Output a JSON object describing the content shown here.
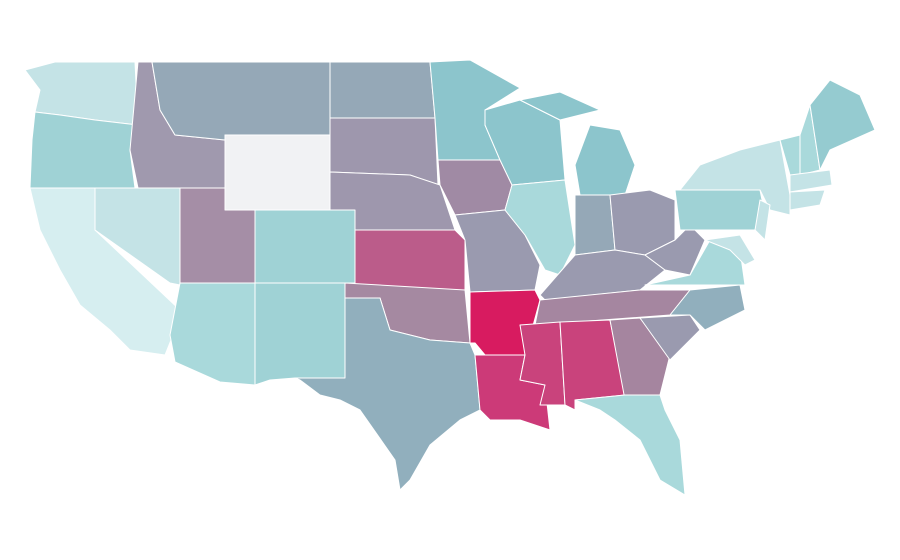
{
  "map": {
    "regions": [
      {
        "color": "#c4e3e6"
      },
      {
        "color": "#9fd2d5"
      },
      {
        "color": "#d6eef0"
      },
      {
        "color": "#c4e3e6"
      },
      {
        "color": "#a099ae"
      },
      {
        "color": "#95a8b7"
      },
      {
        "color": "#f1f2f4"
      },
      {
        "color": "#a58ea6"
      },
      {
        "color": "#9fd2d5"
      },
      {
        "color": "#a9d9db"
      },
      {
        "color": "#9fd2d5"
      },
      {
        "color": "#95a8b7"
      },
      {
        "color": "#9e97ad"
      },
      {
        "color": "#9e97ad"
      },
      {
        "color": "#bb5c8a"
      },
      {
        "color": "#a589a1"
      },
      {
        "color": "#91afbd"
      },
      {
        "color": "#8cc5cc"
      },
      {
        "color": "#a08aa4"
      },
      {
        "color": "#9a9aaf"
      },
      {
        "color": "#d81b60"
      },
      {
        "color": "#cc3a78"
      },
      {
        "color": "#8cc5cc"
      },
      {
        "color": "#a9d9db"
      },
      {
        "color": "#8cc5cc"
      },
      {
        "color": "#95a8b7"
      },
      {
        "color": "#9a9aaf"
      },
      {
        "color": "#9a9aaf"
      },
      {
        "color": "#a586a0"
      },
      {
        "color": "#c9437c"
      },
      {
        "color": "#c9437c"
      },
      {
        "color": "#a5859f"
      },
      {
        "color": "#a9d9db"
      },
      {
        "color": "#9a9aaf"
      },
      {
        "color": "#91afbd"
      },
      {
        "color": "#a9d9db"
      },
      {
        "color": "#9a9aaf"
      },
      {
        "color": "#9fd2d5"
      },
      {
        "color": "#c4e3e6"
      },
      {
        "color": "#c4e3e6"
      },
      {
        "color": "#c4e3e6"
      },
      {
        "color": "#a9d9db"
      },
      {
        "color": "#a9d9db"
      },
      {
        "color": "#95cbd0"
      },
      {
        "color": "#c4e3e6"
      },
      {
        "color": "#c4e3e6"
      }
    ]
  }
}
